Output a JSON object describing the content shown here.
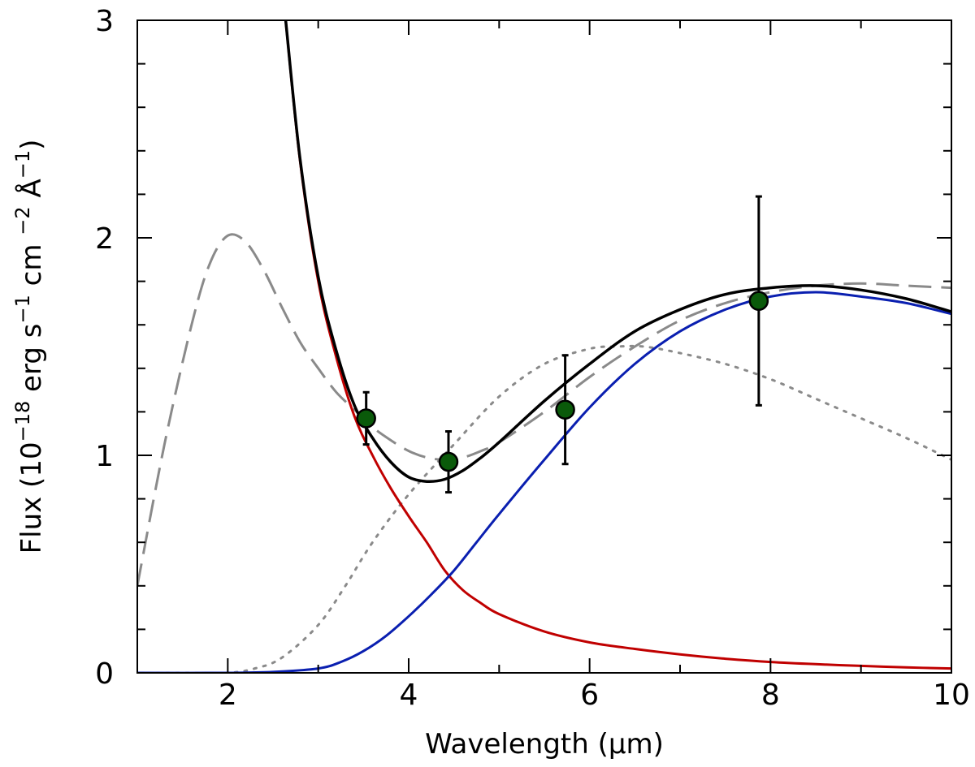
{
  "chart_data": {
    "type": "line",
    "xlabel": "Wavelength (μm)",
    "ylabel": {
      "prefix": "Flux (10",
      "exp1": "−18",
      "mid1": " erg s",
      "exp2": "−1",
      "mid2": " cm ",
      "exp3": "−2",
      "mid3": " Å",
      "exp4": "−1",
      "suffix": ")"
    },
    "xlim": [
      1,
      10
    ],
    "ylim": [
      0,
      3
    ],
    "x_ticks": [
      2,
      4,
      6,
      8,
      10
    ],
    "y_ticks": [
      0,
      1,
      2,
      3
    ],
    "grid": false,
    "series": [
      {
        "color": "#c00000",
        "style": "solid",
        "x": [
          2.64,
          2.8,
          3.0,
          3.2,
          3.4,
          3.6,
          3.8,
          4.0,
          4.2,
          4.4,
          4.6,
          4.8,
          5.0,
          5.5,
          6.0,
          6.5,
          7.0,
          7.5,
          8.0,
          8.5,
          9.0,
          9.5,
          10.0
        ],
        "y": [
          3.0,
          2.35,
          1.8,
          1.45,
          1.18,
          1.0,
          0.85,
          0.72,
          0.6,
          0.47,
          0.38,
          0.32,
          0.27,
          0.19,
          0.14,
          0.11,
          0.085,
          0.065,
          0.05,
          0.04,
          0.032,
          0.025,
          0.02
        ]
      },
      {
        "color": "#0a1fb0",
        "style": "solid",
        "x": [
          1.0,
          2.0,
          2.5,
          3.0,
          3.25,
          3.5,
          3.75,
          4.0,
          4.25,
          4.5,
          4.75,
          5.0,
          5.5,
          6.0,
          6.5,
          7.0,
          7.5,
          8.0,
          8.5,
          9.0,
          9.5,
          10.0
        ],
        "y": [
          0.0,
          0.0,
          0.004,
          0.02,
          0.05,
          0.1,
          0.17,
          0.26,
          0.36,
          0.47,
          0.6,
          0.73,
          0.98,
          1.22,
          1.42,
          1.57,
          1.67,
          1.73,
          1.75,
          1.73,
          1.7,
          1.65
        ]
      },
      {
        "color": "#000000",
        "style": "solid",
        "x": [
          2.64,
          2.8,
          3.0,
          3.2,
          3.4,
          3.6,
          3.8,
          4.0,
          4.2,
          4.4,
          4.6,
          4.8,
          5.0,
          5.5,
          6.0,
          6.5,
          7.0,
          7.5,
          8.0,
          8.5,
          9.0,
          9.5,
          10.0
        ],
        "y": [
          3.0,
          2.36,
          1.82,
          1.48,
          1.23,
          1.08,
          0.97,
          0.9,
          0.88,
          0.89,
          0.93,
          0.99,
          1.06,
          1.25,
          1.42,
          1.57,
          1.67,
          1.74,
          1.77,
          1.78,
          1.76,
          1.72,
          1.66
        ]
      },
      {
        "color": "#8a8a8a",
        "style": "dashed",
        "x": [
          1.0,
          1.3,
          1.6,
          1.8,
          2.0,
          2.2,
          2.4,
          2.6,
          2.8,
          3.0,
          3.2,
          3.4,
          3.6,
          3.8,
          4.0,
          4.2,
          4.4,
          4.6,
          4.8,
          5.0,
          5.5,
          6.0,
          6.5,
          7.0,
          7.5,
          8.0,
          8.5,
          9.0,
          9.5,
          10.0
        ],
        "y": [
          0.4,
          1.05,
          1.6,
          1.88,
          2.01,
          1.98,
          1.85,
          1.68,
          1.52,
          1.4,
          1.29,
          1.21,
          1.13,
          1.07,
          1.02,
          0.99,
          0.98,
          0.99,
          1.02,
          1.06,
          1.2,
          1.36,
          1.5,
          1.62,
          1.7,
          1.75,
          1.78,
          1.79,
          1.78,
          1.77
        ]
      },
      {
        "color": "#8a8a8a",
        "style": "dotted",
        "x": [
          1.0,
          1.5,
          2.0,
          2.3,
          2.6,
          3.0,
          3.3,
          3.6,
          4.0,
          4.5,
          5.0,
          5.5,
          6.0,
          6.3,
          6.6,
          7.0,
          7.5,
          8.0,
          8.5,
          9.0,
          9.5,
          10.0
        ],
        "y": [
          0.0,
          0.0,
          0.0,
          0.02,
          0.07,
          0.22,
          0.4,
          0.6,
          0.82,
          1.05,
          1.27,
          1.42,
          1.49,
          1.5,
          1.5,
          1.47,
          1.42,
          1.35,
          1.26,
          1.17,
          1.08,
          0.98
        ]
      }
    ],
    "points": {
      "color": "#0a5a0a",
      "x": [
        3.53,
        4.44,
        5.73,
        7.87
      ],
      "y": [
        1.17,
        0.97,
        1.21,
        1.71
      ],
      "yerr": [
        0.12,
        0.14,
        0.25,
        0.48
      ]
    }
  }
}
